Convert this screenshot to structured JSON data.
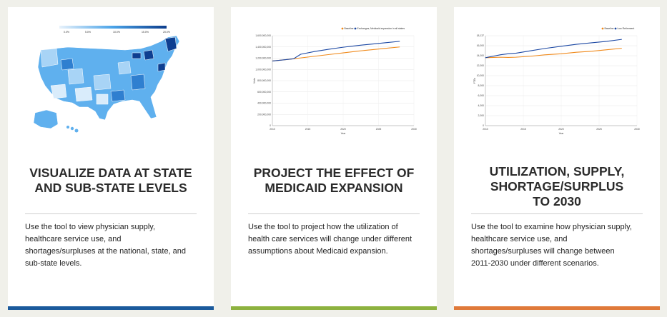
{
  "cards": [
    {
      "title_lines": [
        "Visualize Data at State",
        "and Sub-State Levels"
      ],
      "description_lines": [
        "Use the tool to view physician supply,",
        "healthcare service use, and",
        "shortages/surpluses at the national, state, and",
        "sub-state levels."
      ],
      "accent_color": "#1b5a9c",
      "map_legend_ticks": [
        "0.0%",
        "5.0%",
        "10.0%",
        "15.0%",
        "20.0%"
      ]
    },
    {
      "title_lines": [
        "Project the Effect of",
        "Medicaid Expansion"
      ],
      "description_lines": [
        "Use the tool to project how the utilization of",
        "health care services will change under different",
        "assumptions about Medicaid expansion."
      ],
      "accent_color": "#8db23f",
      "chart_data": {
        "type": "line",
        "title": "",
        "xlabel": "Year",
        "ylabel": "Visits",
        "x": [
          2010,
          2012,
          2013,
          2014,
          2016,
          2018,
          2020,
          2022,
          2024,
          2026,
          2028
        ],
        "series": [
          {
            "name": "Baseline",
            "color": "#f08a1c",
            "values": [
              1150000000,
              1175000000,
              1190000000,
              1205000000,
              1235000000,
              1265000000,
              1295000000,
              1325000000,
              1350000000,
              1375000000,
              1400000000
            ]
          },
          {
            "name": "Exchanges, Medicaid expansion in all states",
            "color": "#1b47a3",
            "values": [
              1150000000,
              1175000000,
              1190000000,
              1270000000,
              1320000000,
              1360000000,
              1395000000,
              1425000000,
              1450000000,
              1475000000,
              1500000000
            ]
          }
        ],
        "y_ticks": [
          "1,600,000,000",
          "1,400,000,000",
          "1,200,000,000",
          "1,000,000,000",
          "800,000,000",
          "600,000,000",
          "400,000,000",
          "200,000,000",
          "0"
        ],
        "x_ticks": [
          "2010",
          "2015",
          "2020",
          "2025",
          "2030"
        ],
        "ylim": [
          0,
          1600000000
        ],
        "xlim": [
          2010,
          2030
        ],
        "grid": true,
        "legend": "top-right"
      }
    },
    {
      "title_lines": [
        "Utilization, Supply,",
        "Shortage/Surplus",
        "to 2030"
      ],
      "description_lines": [
        "Use the tool to examine how physician supply,",
        "healthcare service use, and",
        "shortages/surpluses will change between",
        "2011-2030 under different scenarios."
      ],
      "accent_color": "#e07a3a",
      "chart_data": {
        "type": "line",
        "title": "",
        "xlabel": "Year",
        "ylabel": "FTEs",
        "x": [
          2010,
          2011,
          2012,
          2013,
          2014,
          2016,
          2018,
          2020,
          2022,
          2024,
          2026,
          2028
        ],
        "series": [
          {
            "name": "Baseline",
            "color": "#f08a1c",
            "values": [
              13700,
              13750,
              13800,
              13750,
              13800,
              14000,
              14300,
              14500,
              14800,
              15000,
              15300,
              15600
            ]
          },
          {
            "name": "Low Retirement",
            "color": "#1b47a3",
            "values": [
              13700,
              14000,
              14300,
              14500,
              14600,
              15100,
              15600,
              16000,
              16400,
              16700,
              17000,
              17400
            ]
          }
        ],
        "y_ticks": [
          "18,137",
          "16,000",
          "14,000",
          "12,000",
          "10,000",
          "8,000",
          "6,000",
          "4,000",
          "2,000",
          "0"
        ],
        "x_ticks": [
          "2010",
          "2015",
          "2020",
          "2025",
          "2030"
        ],
        "ylim": [
          0,
          18137
        ],
        "xlim": [
          2010,
          2030
        ],
        "grid": true,
        "legend": "top-right"
      }
    }
  ]
}
